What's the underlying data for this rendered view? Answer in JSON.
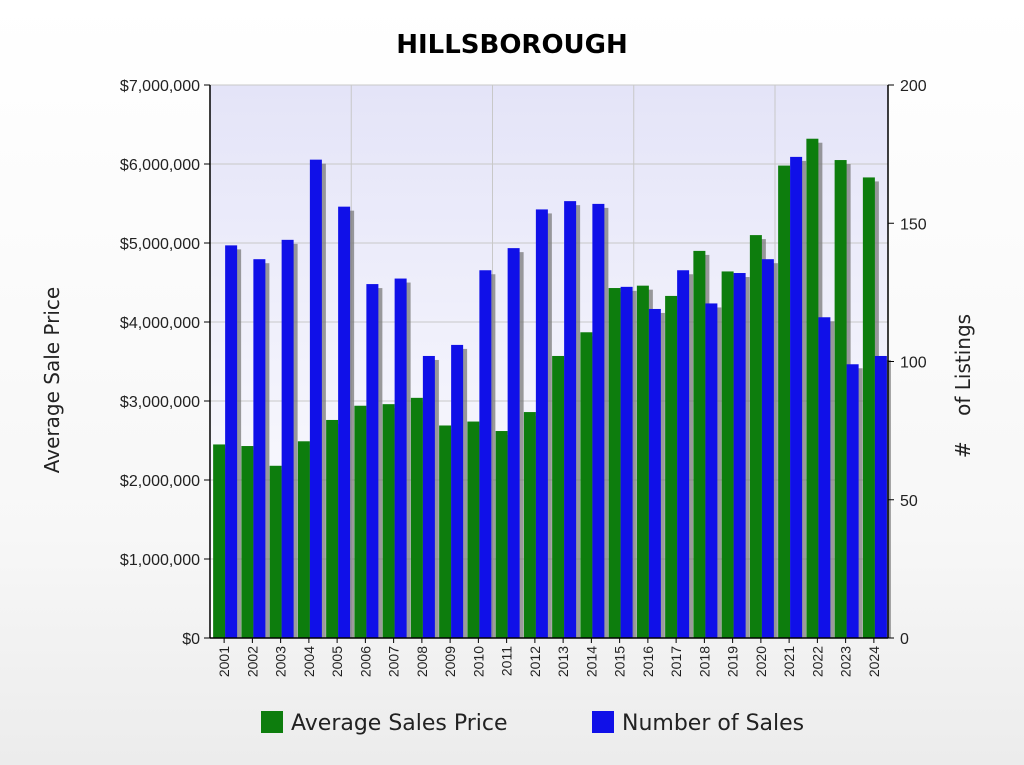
{
  "chart_data": {
    "type": "bar",
    "title": "HILLSBOROUGH",
    "ylabel": "Average Sale Price",
    "y2label": "#    of Listings",
    "categories": [
      "2001",
      "2002",
      "2003",
      "2004",
      "2005",
      "2006",
      "2007",
      "2008",
      "2009",
      "2010",
      "2011",
      "2012",
      "2013",
      "2014",
      "2015",
      "2016",
      "2017",
      "2018",
      "2019",
      "2020",
      "2021",
      "2022",
      "2023",
      "2024"
    ],
    "ylim": [
      0,
      7000000
    ],
    "y2lim": [
      0,
      200
    ],
    "yticks": [
      "$0",
      "$1,000,000",
      "$2,000,000",
      "$3,000,000",
      "$4,000,000",
      "$5,000,000",
      "$6,000,000",
      "$7,000,000"
    ],
    "y2ticks": [
      "0",
      "50",
      "100",
      "150",
      "200"
    ],
    "grid": true,
    "legend_position": "bottom",
    "series": [
      {
        "name": "Average Sales Price",
        "axis": "left",
        "color": "#0d7d0d",
        "values": [
          2450000,
          2430000,
          2180000,
          2490000,
          2760000,
          2940000,
          2960000,
          3040000,
          2690000,
          2740000,
          2620000,
          2860000,
          3570000,
          3870000,
          4430000,
          4460000,
          4330000,
          4900000,
          4640000,
          5100000,
          5980000,
          6320000,
          6050000,
          5830000
        ]
      },
      {
        "name": "Number of Sales",
        "axis": "right",
        "color": "#1010e8",
        "values": [
          142,
          137,
          144,
          173,
          156,
          128,
          130,
          102,
          106,
          133,
          141,
          155,
          158,
          157,
          127,
          119,
          133,
          121,
          132,
          137,
          174,
          116,
          99,
          102
        ]
      }
    ]
  }
}
